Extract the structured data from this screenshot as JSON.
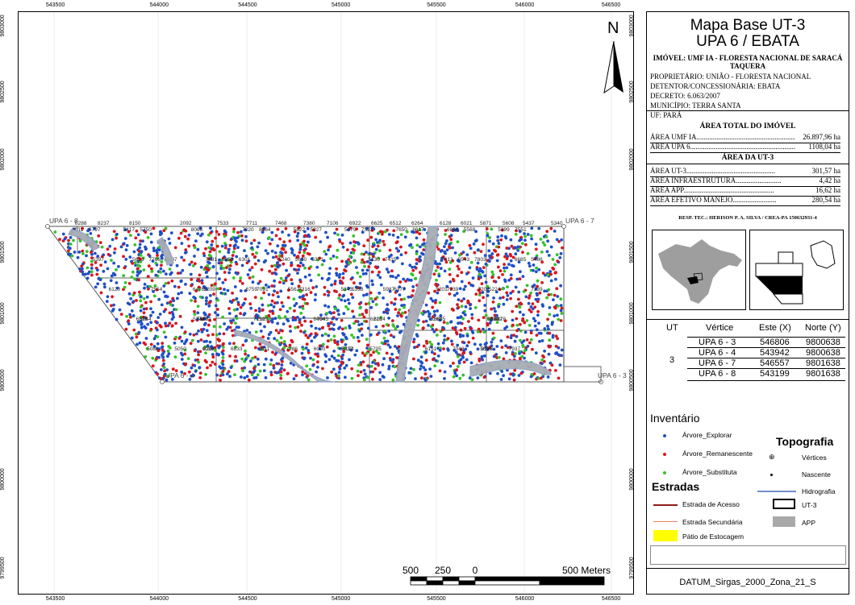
{
  "grid": {
    "x_ticks": [
      "543500",
      "544000",
      "544500",
      "545000",
      "545500",
      "546000",
      "546500"
    ],
    "y_ticks": [
      "9803000",
      "9802500",
      "9802000",
      "9801500",
      "9801000",
      "9800500",
      "9800000",
      "9799500"
    ]
  },
  "map": {
    "north_label": "N",
    "vertex_labels": [
      "UPA 6 - 8",
      "UPA 6 - 7",
      "UPA 6 - 4",
      "UPA 6 - 3"
    ],
    "inventory_numbers": [
      "8288",
      "8237",
      "8150",
      "2092",
      "7533",
      "7711",
      "7468",
      "7380",
      "7106",
      "6922",
      "6625",
      "6512",
      "6264",
      "6128",
      "6021",
      "5871",
      "5608",
      "5437",
      "5340",
      "8267",
      "8184",
      "7803",
      "7091",
      "6878",
      "6124",
      "5927",
      "5397",
      "5333",
      "5281",
      "8153",
      "7523",
      "7407",
      "7239",
      "7045",
      "6833",
      "6617",
      "6301",
      "6120",
      "5885",
      "5705",
      "5568",
      "5371",
      "5209",
      "8044",
      "7937",
      "7551",
      "7415",
      "7316",
      "7129",
      "7011",
      "6797",
      "6543",
      "6377",
      "6214",
      "5958",
      "5750",
      "5486",
      "5224",
      "5082",
      "5080",
      "8066",
      "7766",
      "7554",
      "7427",
      "7286",
      "7020",
      "6958",
      "6759",
      "6404",
      "6151",
      "5822",
      "5630",
      "5345",
      "5267",
      "5050",
      "5079",
      "5130",
      "5201",
      "6513",
      "6000",
      "7650",
      "7413",
      "7339",
      "7150",
      "7048",
      "6896",
      "6685",
      "6476",
      "6218",
      "6036",
      "5899",
      "5613",
      "5562",
      "5330",
      "5237",
      "6011",
      "7891",
      "5987",
      "5774",
      "5694",
      "5417",
      "5240",
      "7202"
    ],
    "scalebar": {
      "labels": [
        "500",
        "250",
        "0",
        "500 Meters"
      ]
    }
  },
  "panel": {
    "title_line1": "Mapa Base UT-3",
    "title_line2": "UPA 6 / EBATA",
    "imovel": "IMÓVEL: UMF IA - FLORESTA NACIONAL DE SARACÁ TAQUERA",
    "proprietario": "PROPRIETÁRIO: UNIÃO - FLORESTA NACIONAL",
    "detentor": "DETENTOR/CONCESSIONÁRIA: EBATA",
    "decreto": "DECRETO: 6.063/2007",
    "municipio": "MUNICÍPIO: TERRA SANTA",
    "uf": "UF: PARÁ",
    "area_total_heading": "ÁREA TOTAL DO IMÓVEL",
    "area_umf_label": "ÁREA UMF IA......................................................................",
    "area_umf_value": "26.897,96 ha",
    "area_upa_label": "ÁREA UPA 6.....................................................................",
    "area_upa_value": "1108,04 ha",
    "area_ut_heading": "ÁREA DA UT-3",
    "rows": [
      {
        "label": "ÁREA UT-3.................................................",
        "value": "301,57 ha"
      },
      {
        "label": "ÁREA INFRAESTRUTURA.........................",
        "value": "4,42 ha"
      },
      {
        "label": "ÁREA APP..................................................",
        "value": "16,62 ha"
      },
      {
        "label": "ÁREA EFETIVO MANEJO........................",
        "value": "280,54 ha"
      }
    ],
    "resp": "RESP. TEC.: HERISON P. A. SILVA / CREA-PA 150632931-4",
    "table": {
      "headers": [
        "UT",
        "Vértice",
        "Este (X)",
        "Norte (Y)"
      ],
      "ut": "3",
      "rows": [
        [
          "UPA 6 - 3",
          "546806",
          "9800638"
        ],
        [
          "UPA 6 - 4",
          "543942",
          "9800638"
        ],
        [
          "UPA 6 - 7",
          "546557",
          "9801638"
        ],
        [
          "UPA 6 - 8",
          "543199",
          "9801638"
        ]
      ]
    },
    "legend": {
      "inventario": "Inventário",
      "explorar": "Árvore_Explorar",
      "remanescente": "Árvore_Remanescente",
      "substituta": "Árvore_Substituta",
      "estradas": "Estradas",
      "acesso": "Estrada de Acesso",
      "secundaria": "Estrada Secundária",
      "patio": "Pátio de Estocagem",
      "topografia": "Topografia",
      "vertices": "Vértices",
      "nascente": "Nascente",
      "hidrografia": "Hidrografia",
      "ut3": "UT-3",
      "app": "APP"
    },
    "datum": "DATUM_Sirgas_2000_Zona_21_S",
    "colors": {
      "explorar": "#1f4fc7",
      "remanescente": "#d9161c",
      "substituta": "#36c22a",
      "acesso": "#8b1a1a",
      "secundaria": "#f08060",
      "patio": "#ffff00",
      "hidro": "#6e8fc9",
      "app": "#a9a9a9"
    }
  }
}
